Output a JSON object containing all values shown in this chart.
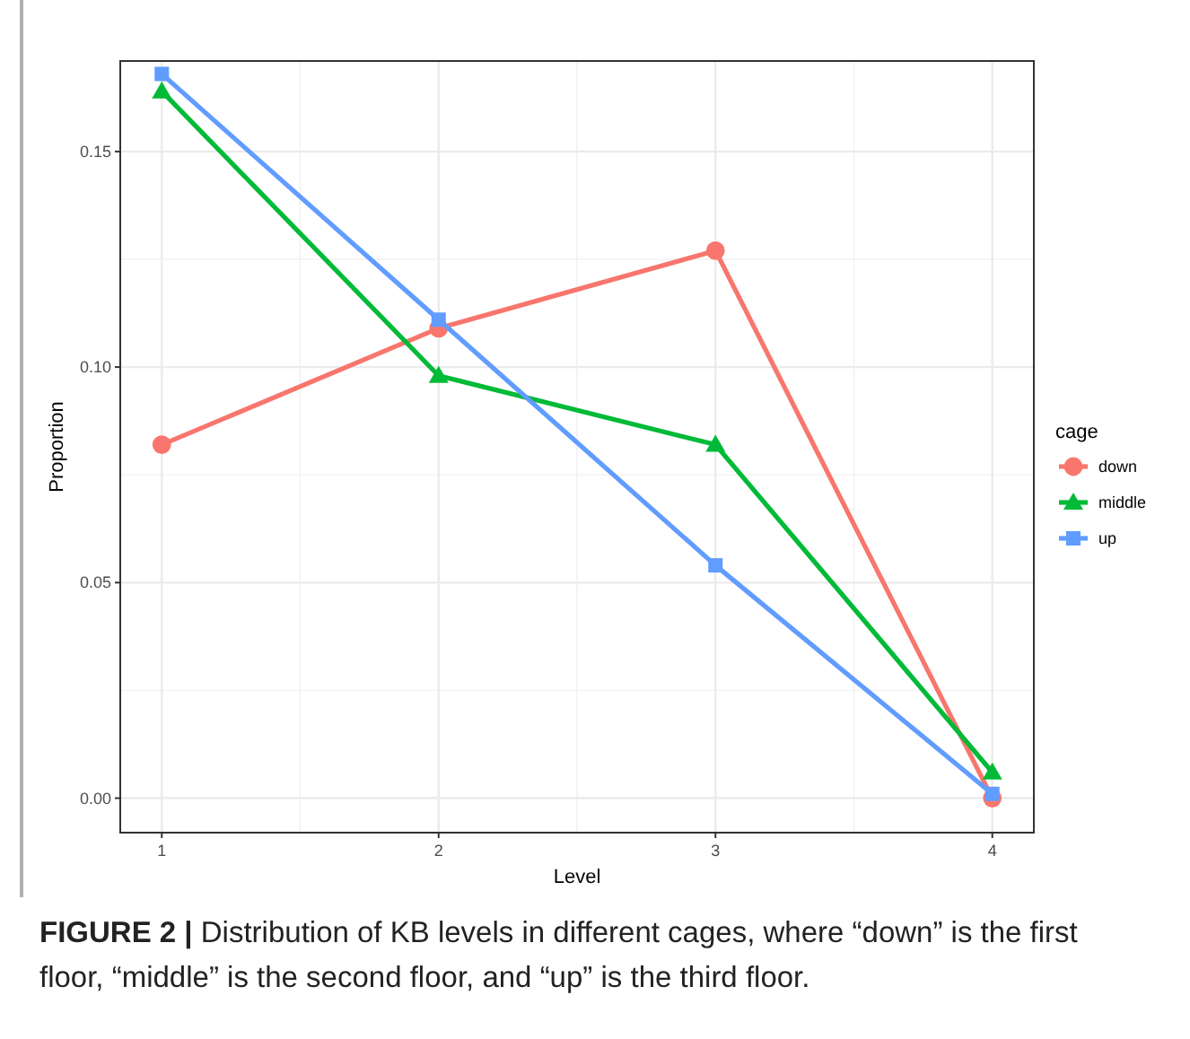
{
  "chart_data": {
    "type": "line",
    "xlabel": "Level",
    "ylabel": "Proportion",
    "legend_title": "cage",
    "legend": "right",
    "grid": true,
    "x": [
      1,
      2,
      3,
      4
    ],
    "xlim": [
      0.85,
      4.15
    ],
    "xticks": [
      1,
      2,
      3,
      4
    ],
    "ylim": [
      -0.008,
      0.171
    ],
    "yticks": [
      {
        "value": 0,
        "label": "0.00"
      },
      {
        "value": 0.05,
        "label": "0.05"
      },
      {
        "value": 0.1,
        "label": "0.10"
      },
      {
        "value": 0.15,
        "label": "0.15"
      }
    ],
    "series": [
      {
        "name": "down",
        "color": "#f8766d",
        "marker": "circle",
        "values": [
          0.082,
          0.109,
          0.127,
          0.0
        ]
      },
      {
        "name": "middle",
        "color": "#00ba38",
        "marker": "triangle",
        "values": [
          0.164,
          0.098,
          0.082,
          0.006
        ]
      },
      {
        "name": "up",
        "color": "#619cff",
        "marker": "square",
        "values": [
          0.168,
          0.111,
          0.054,
          0.001
        ]
      }
    ],
    "annotations": [
      "FIGURE 2 |",
      "Distribution of KB levels in different cages, where “down” is the first floor, “middle” is the second floor, and “up” is the third floor."
    ]
  }
}
